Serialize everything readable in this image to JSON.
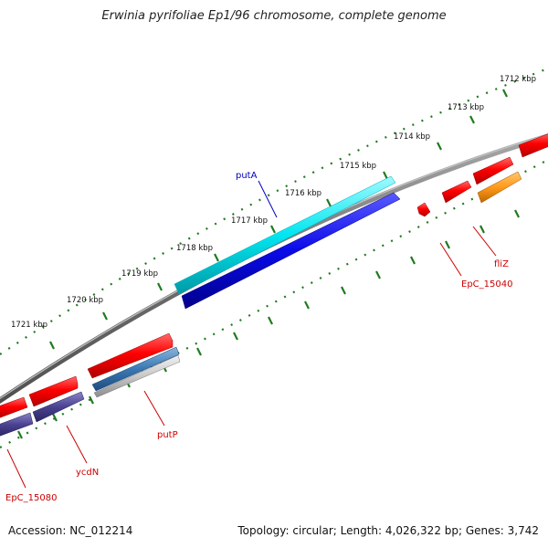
{
  "title": "Erwinia pyrifoliae Ep1/96 chromosome, complete genome",
  "footer": {
    "accession": "Accession: NC_012214",
    "topology": "Topology: circular; Length: 4,026,322 bp; Genes: 3,742"
  },
  "colors": {
    "backbone": "#7a7a7a",
    "ticks": "#1e7a1e",
    "label_red": "#cc0000",
    "label_blue": "#0000bb"
  },
  "ticks": [
    "1712 kbp",
    "1713 kbp",
    "1714 kbp",
    "1715 kbp",
    "1716 kbp",
    "1717 kbp",
    "1718 kbp",
    "1719 kbp",
    "1720 kbp",
    "1721 kbp"
  ],
  "gene_labels": {
    "putA": "putA",
    "fliZ": "fliZ",
    "EpC_15040": "EpC_15040",
    "putP": "putP",
    "ycdN": "ycdN",
    "EpC_15080": "EpC_15080"
  }
}
